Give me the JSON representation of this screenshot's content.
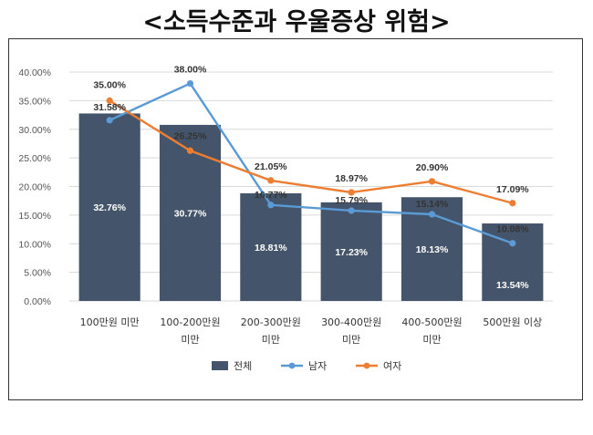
{
  "title": "<소득수준과 우울증상 위험>",
  "chart_data": {
    "type": "bar",
    "categories": [
      [
        "100만원 미만"
      ],
      [
        "100-200만원",
        "미만"
      ],
      [
        "200-300만원",
        "미만"
      ],
      [
        "300-400만원",
        "미만"
      ],
      [
        "400-500만원",
        "미만"
      ],
      [
        "500만원 이상"
      ]
    ],
    "y_ticks": [
      "40.00%",
      "35.00%",
      "30.00%",
      "25.00%",
      "20.00%",
      "15.00%",
      "10.00%",
      "5.00%",
      "0.00%"
    ],
    "ylim": [
      0,
      40
    ],
    "grid": true,
    "legend_position": "bottom",
    "series": [
      {
        "name": "전체",
        "kind": "bar",
        "color": "#44546a",
        "values": [
          32.76,
          30.77,
          18.81,
          17.23,
          18.13,
          13.54
        ],
        "labels": [
          "32.76%",
          "30.77%",
          "18.81%",
          "17.23%",
          "18.13%",
          "13.54%"
        ]
      },
      {
        "name": "남자",
        "kind": "line",
        "color": "#5b9bd5",
        "values": [
          31.58,
          38.0,
          16.77,
          15.79,
          15.14,
          10.08
        ],
        "labels": [
          "31.58%",
          "38.00%",
          "16.77%",
          "15.79%",
          "15.14%",
          "10.08%"
        ]
      },
      {
        "name": "여자",
        "kind": "line",
        "color": "#ed7d31",
        "values": [
          35.0,
          26.25,
          21.05,
          18.97,
          20.9,
          17.09
        ],
        "labels": [
          "35.00%",
          "26.25%",
          "21.05%",
          "18.97%",
          "20.90%",
          "17.09%"
        ]
      }
    ]
  }
}
